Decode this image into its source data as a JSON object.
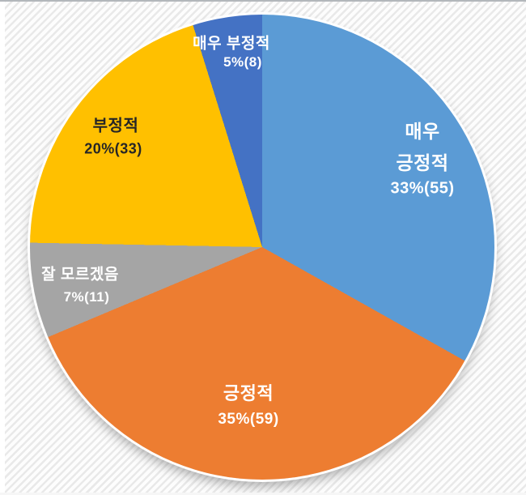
{
  "chart_data": {
    "type": "pie",
    "title": "",
    "categories": [
      "매우 긍정적",
      "긍정적",
      "잘 모르겠음",
      "부정적",
      "매우 부정적"
    ],
    "values": [
      55,
      59,
      11,
      33,
      8
    ],
    "percentages": [
      33,
      35,
      7,
      20,
      5
    ],
    "data_labels": [
      "33%(55)",
      "35%(59)",
      "7%(11)",
      "20%(33)",
      "5%(8)"
    ],
    "colors": [
      "#5B9BD5",
      "#ED7D31",
      "#A5A5A5",
      "#FFC000",
      "#4472C4"
    ],
    "start_angle_deg": 0,
    "direction": "clockwise",
    "legend": "none",
    "labels_on_slices": true,
    "background": "white with light diagonal pinstripes"
  },
  "slices": [
    {
      "name": "매우 긍정적",
      "value": 55,
      "percent": 33,
      "color": "#5B9BD5",
      "text_color": "#FFFFFF",
      "lines": [
        "매우",
        "긍정적",
        "33%(55)"
      ]
    },
    {
      "name": "긍정적",
      "value": 59,
      "percent": 35,
      "color": "#ED7D31",
      "text_color": "#FFFFFF",
      "lines": [
        "긍정적",
        "35%(59)"
      ]
    },
    {
      "name": "잘 모르겠음",
      "value": 11,
      "percent": 7,
      "color": "#A5A5A5",
      "text_color": "#FFFFFF",
      "lines": [
        "잘 모르겠음",
        "7%(11)"
      ]
    },
    {
      "name": "부정적",
      "value": 33,
      "percent": 20,
      "color": "#FFC000",
      "text_color": "#262626",
      "lines": [
        "부정적",
        "20%(33)"
      ]
    },
    {
      "name": "매우 부정적",
      "value": 8,
      "percent": 5,
      "color": "#4472C4",
      "text_color": "#FFFFFF",
      "lines": [
        "매우 부정적",
        "5%(8)"
      ]
    }
  ]
}
